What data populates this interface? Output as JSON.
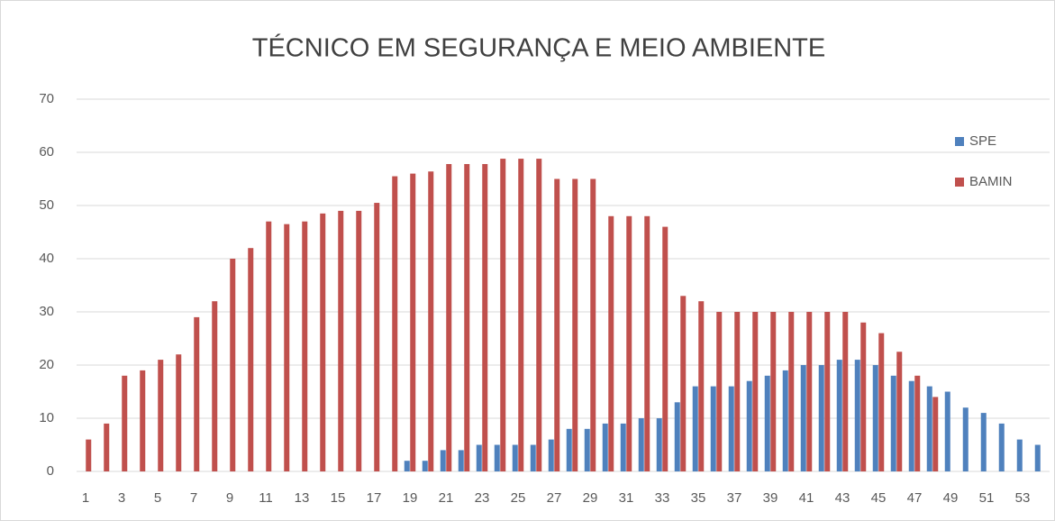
{
  "chart_data": {
    "type": "bar",
    "title": "TÉCNICO EM SEGURANÇA E MEIO AMBIENTE",
    "categories": [
      "1",
      null,
      "3",
      null,
      "5",
      null,
      "7",
      null,
      "9",
      null,
      "11",
      null,
      "13",
      null,
      "15",
      null,
      "17",
      null,
      "19",
      null,
      "21",
      null,
      "23",
      null,
      "25",
      null,
      "27",
      null,
      "29",
      null,
      "31",
      null,
      "33",
      null,
      "35",
      null,
      "37",
      null,
      "39",
      null,
      "41",
      null,
      "43",
      null,
      "45",
      null,
      "47",
      null,
      "49",
      null,
      "51",
      null,
      "53",
      null
    ],
    "series": [
      {
        "name": "SPE",
        "color": "#4f81bd",
        "values": [
          0,
          0,
          0,
          0,
          0,
          0,
          0,
          0,
          0,
          0,
          0,
          0,
          0,
          0,
          0,
          0,
          0,
          0,
          2,
          2,
          4,
          4,
          5,
          5,
          5,
          5,
          6,
          8,
          8,
          9,
          9,
          10,
          10,
          13,
          16,
          16,
          16,
          17,
          18,
          19,
          20,
          20,
          21,
          21,
          20,
          18,
          17,
          16,
          15,
          12,
          11,
          9,
          6,
          5
        ]
      },
      {
        "name": "BAMIN",
        "color": "#c0504d",
        "values": [
          6,
          9,
          18,
          19,
          21,
          22,
          29,
          32,
          40,
          42,
          47,
          46.5,
          47,
          48.5,
          49,
          49,
          50.5,
          55.5,
          56,
          56.4,
          57.8,
          57.8,
          57.8,
          58.8,
          58.8,
          58.8,
          55,
          55,
          55,
          48,
          48,
          48,
          46,
          33,
          32,
          30,
          30,
          30,
          30,
          30,
          30,
          30,
          30,
          28,
          26,
          22.5,
          18,
          14,
          null,
          null,
          null,
          null,
          null,
          null
        ]
      }
    ],
    "ylim": [
      0,
      70
    ],
    "yticks": [
      0,
      10,
      20,
      30,
      40,
      50,
      60,
      70
    ],
    "grid": true,
    "legend": "right"
  }
}
